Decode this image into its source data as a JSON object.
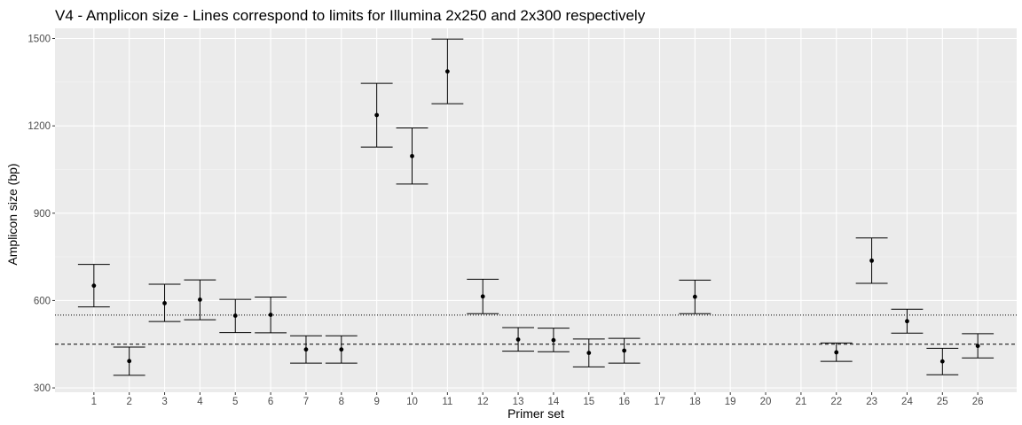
{
  "chart_data": {
    "type": "errorbar",
    "title": "V4 - Amplicon size - Lines correspond to limits for Illumina 2x250 and 2x300 respectively",
    "xlabel": "Primer set",
    "ylabel": "Amplicon size (bp)",
    "categories": [
      "1",
      "2",
      "3",
      "4",
      "5",
      "6",
      "7",
      "8",
      "9",
      "10",
      "11",
      "12",
      "13",
      "14",
      "15",
      "16",
      "17",
      "18",
      "19",
      "20",
      "21",
      "22",
      "23",
      "24",
      "25",
      "26"
    ],
    "ylim": [
      285,
      1535
    ],
    "yticks": [
      300,
      600,
      900,
      1200,
      1500
    ],
    "points": [
      {
        "x": "1",
        "y": 651,
        "ymin": 578,
        "ymax": 724
      },
      {
        "x": "2",
        "y": 392,
        "ymin": 343,
        "ymax": 440
      },
      {
        "x": "3",
        "y": 591,
        "ymin": 528,
        "ymax": 656
      },
      {
        "x": "4",
        "y": 603,
        "ymin": 534,
        "ymax": 671
      },
      {
        "x": "5",
        "y": 548,
        "ymin": 490,
        "ymax": 604
      },
      {
        "x": "6",
        "y": 551,
        "ymin": 489,
        "ymax": 612
      },
      {
        "x": "7",
        "y": 432,
        "ymin": 385,
        "ymax": 479
      },
      {
        "x": "8",
        "y": 432,
        "ymin": 385,
        "ymax": 479
      },
      {
        "x": "9",
        "y": 1237,
        "ymin": 1127,
        "ymax": 1346
      },
      {
        "x": "10",
        "y": 1096,
        "ymin": 1000,
        "ymax": 1193
      },
      {
        "x": "11",
        "y": 1387,
        "ymin": 1276,
        "ymax": 1498
      },
      {
        "x": "12",
        "y": 614,
        "ymin": 555,
        "ymax": 673
      },
      {
        "x": "13",
        "y": 466,
        "ymin": 426,
        "ymax": 507
      },
      {
        "x": "14",
        "y": 464,
        "ymin": 424,
        "ymax": 505
      },
      {
        "x": "15",
        "y": 420,
        "ymin": 372,
        "ymax": 468
      },
      {
        "x": "16",
        "y": 428,
        "ymin": 385,
        "ymax": 470
      },
      {
        "x": "18",
        "y": 613,
        "ymin": 555,
        "ymax": 670
      },
      {
        "x": "22",
        "y": 422,
        "ymin": 391,
        "ymax": 454
      },
      {
        "x": "23",
        "y": 737,
        "ymin": 659,
        "ymax": 815
      },
      {
        "x": "24",
        "y": 529,
        "ymin": 488,
        "ymax": 570
      },
      {
        "x": "25",
        "y": 391,
        "ymin": 345,
        "ymax": 436
      },
      {
        "x": "26",
        "y": 444,
        "ymin": 403,
        "ymax": 486
      }
    ],
    "reference_lines": [
      {
        "y": 450,
        "style": "dashed"
      },
      {
        "y": 550,
        "style": "dotted"
      }
    ],
    "grid": true,
    "colors": {
      "panel_background": "#ebebeb",
      "grid_major": "#ffffff",
      "grid_minor": "#f5f5f5",
      "marks": "#000000",
      "tick_text": "#4d4d4d"
    }
  }
}
